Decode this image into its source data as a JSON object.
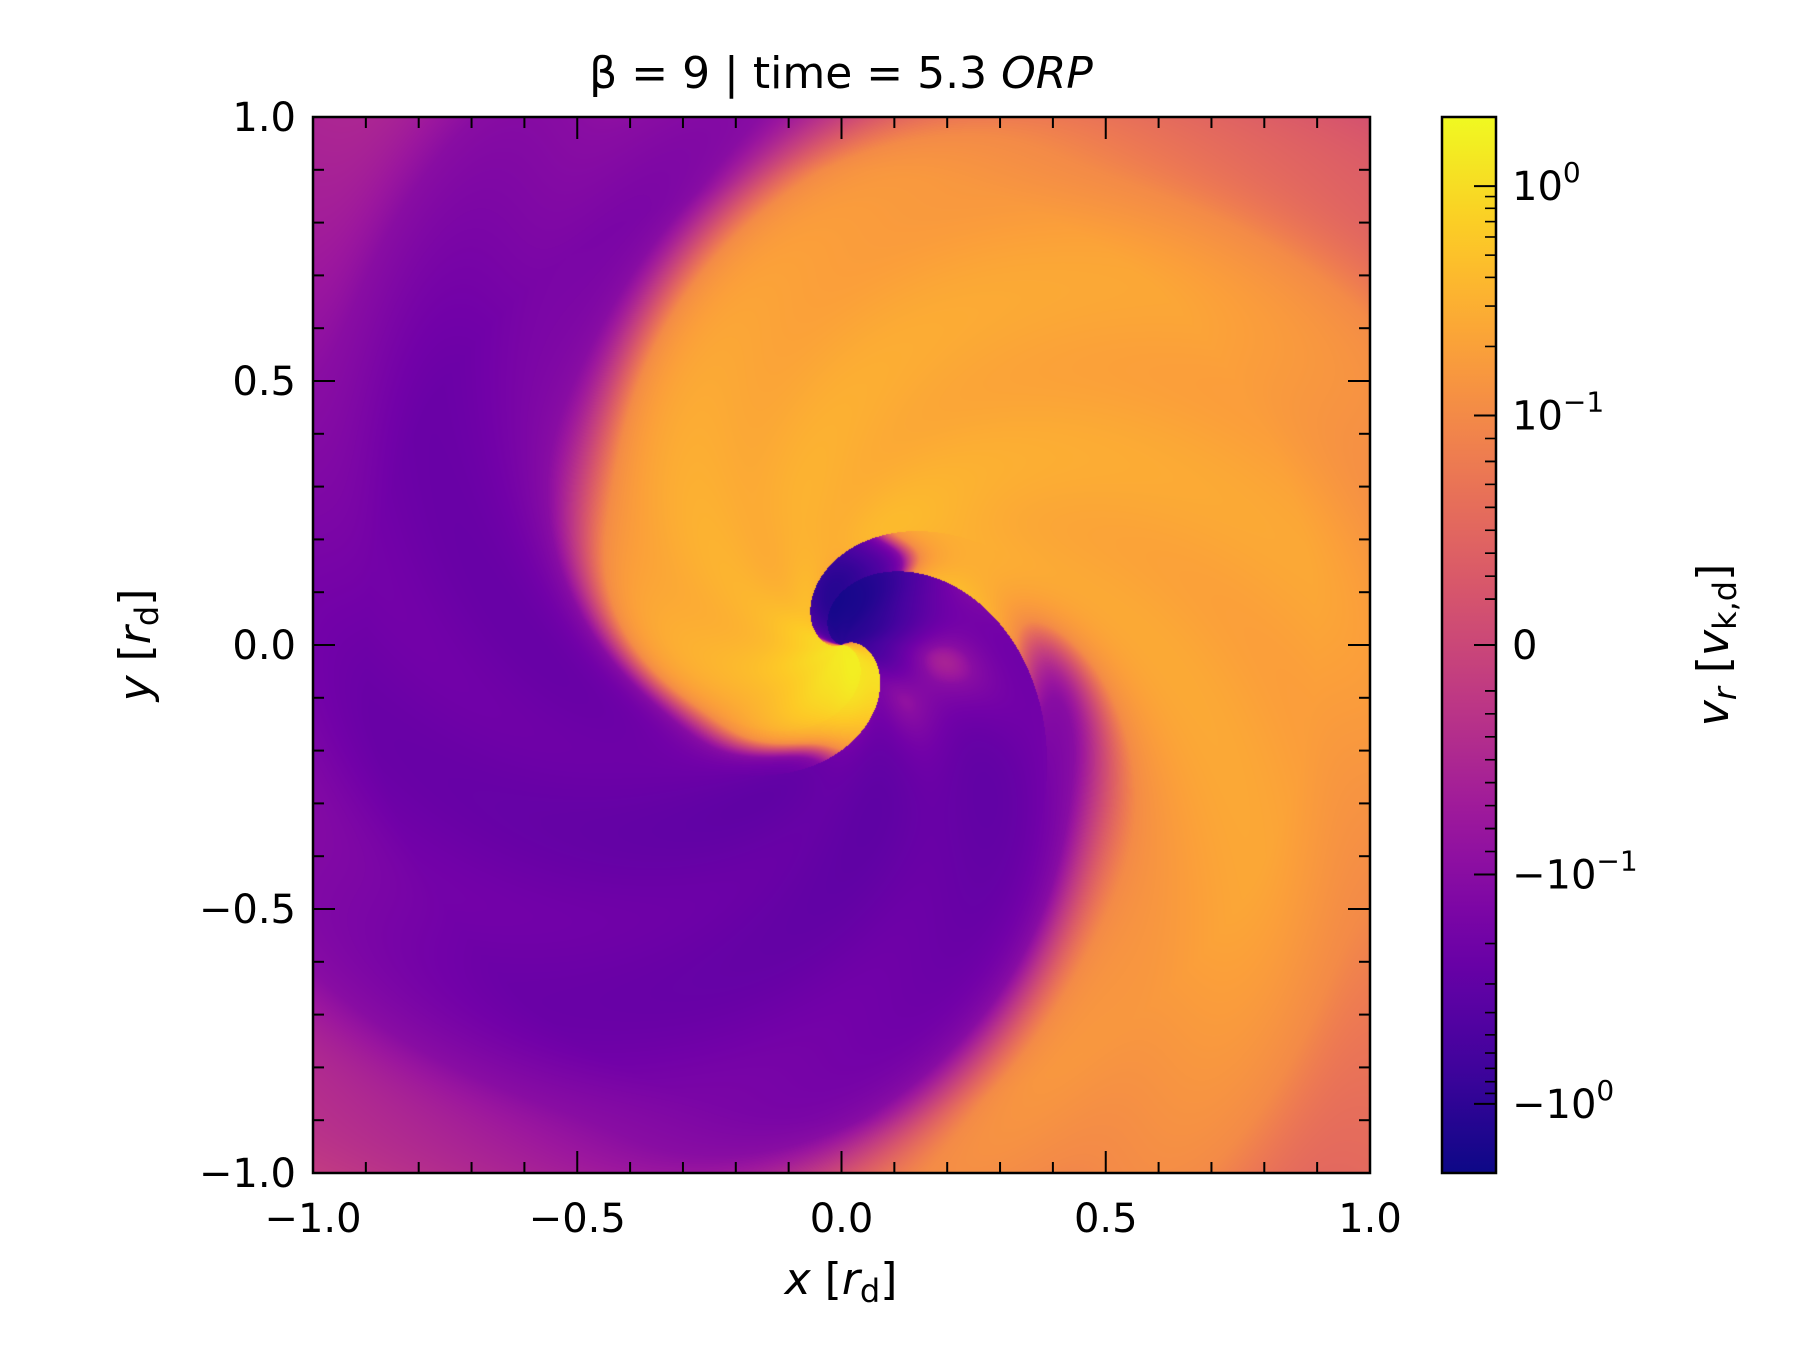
{
  "chart_data": {
    "type": "heatmap",
    "title": {
      "prefix": "β = 9 | time = 5.3 ",
      "italic": "ORP"
    },
    "xlabel": {
      "var": "x",
      "open": " [",
      "unit_var": "r",
      "unit_sub": "d",
      "close": "]"
    },
    "ylabel": {
      "var": "y",
      "open": " [",
      "unit_var": "r",
      "unit_sub": "d",
      "close": "]"
    },
    "xlim": [
      -1.0,
      1.0
    ],
    "ylim": [
      -1.0,
      1.0
    ],
    "xticks": [
      -1.0,
      -0.5,
      0.0,
      0.5,
      1.0
    ],
    "yticks": [
      -1.0,
      -0.5,
      0.0,
      0.5,
      1.0
    ],
    "xtick_labels": [
      "−1.0",
      "−0.5",
      "0.0",
      "0.5",
      "1.0"
    ],
    "ytick_labels": [
      "−1.0",
      "−0.5",
      "0.0",
      "0.5",
      "1.0"
    ],
    "grid": false,
    "colormap": "plasma",
    "colormap_stops": [
      "#0d0887",
      "#46039f",
      "#7201a8",
      "#9c179e",
      "#bd3786",
      "#d8576b",
      "#ed7953",
      "#fb9f3a",
      "#fdca26",
      "#f0f921"
    ],
    "colorbar": {
      "scale": "symlog",
      "label": {
        "var": "v",
        "sub": "r",
        "open": " [",
        "unit_var": "v",
        "unit_sub": "k,d",
        "close": "]"
      },
      "ticks": [
        {
          "value": 1.0,
          "base": "10",
          "exp": "0"
        },
        {
          "value": 0.1,
          "base": "10",
          "exp": "−1"
        },
        {
          "value": 0,
          "base": "0",
          "exp": ""
        },
        {
          "value": -0.1,
          "base": "−10",
          "exp": "−1"
        },
        {
          "value": -1.0,
          "base": "−10",
          "exp": "0"
        }
      ],
      "range": [
        -2.0,
        2.0
      ]
    },
    "field_description_values": {
      "inflow_core_center": [
        -0.02,
        0.1
      ],
      "outflow_core_center": [
        0.12,
        -0.02
      ],
      "core_values": {
        "inflow_min": -1.5,
        "outflow_max": 1.8
      }
    }
  }
}
